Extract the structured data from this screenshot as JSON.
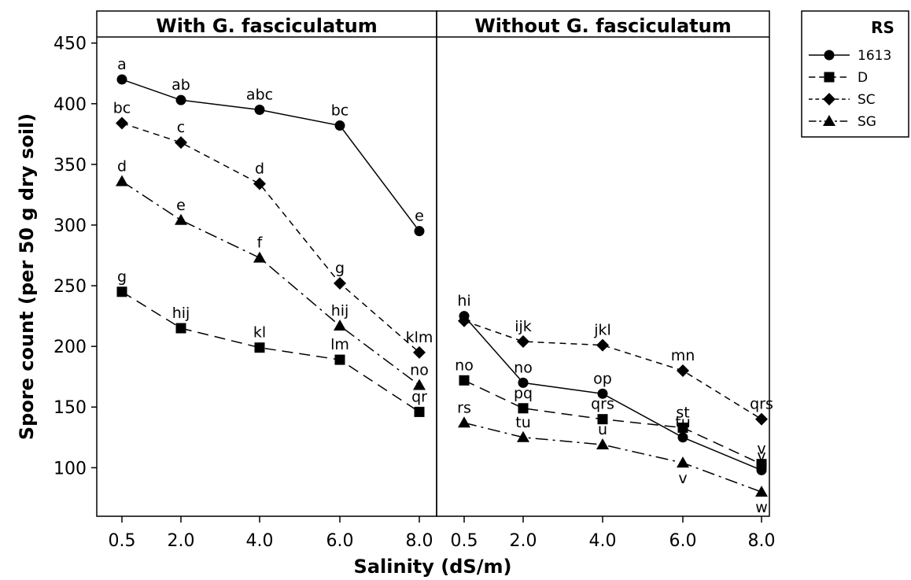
{
  "chart_data": {
    "type": "line",
    "ylabel": "Spore count (per 50 g dry soil)",
    "xlabel": "Salinity (dS/m)",
    "ylim": [
      60,
      455
    ],
    "yticks": [
      100,
      150,
      200,
      250,
      300,
      350,
      400,
      450
    ],
    "categories": [
      "0.5",
      "2.0",
      "4.0",
      "6.0",
      "8.0"
    ],
    "legend": {
      "title": "RS",
      "position": "top-right"
    },
    "series_styles": [
      {
        "name": "1613",
        "marker": "circle",
        "dash": "solid"
      },
      {
        "name": "D",
        "marker": "square",
        "dash": "long-dash"
      },
      {
        "name": "SC",
        "marker": "diamond",
        "dash": "dash"
      },
      {
        "name": "SG",
        "marker": "triangle",
        "dash": "dash-dot"
      }
    ],
    "panels": [
      {
        "title": "With G. fasciculatum",
        "series": [
          {
            "name": "1613",
            "values": [
              420,
              403,
              395,
              382,
              295
            ],
            "labels": [
              "a",
              "ab",
              "abc",
              "bc",
              "e"
            ]
          },
          {
            "name": "D",
            "values": [
              245,
              215,
              199,
              189,
              146
            ],
            "labels": [
              "g",
              "hij",
              "kl",
              "lm",
              "qr"
            ]
          },
          {
            "name": "SC",
            "values": [
              384,
              368,
              334,
              252,
              195
            ],
            "labels": [
              "bc",
              "c",
              "d",
              "g",
              "klm"
            ]
          },
          {
            "name": "SG",
            "values": [
              336,
              304,
              273,
              217,
              168
            ],
            "labels": [
              "d",
              "e",
              "f",
              "hij",
              "no"
            ]
          }
        ]
      },
      {
        "title": "Without G. fasciculatum",
        "series": [
          {
            "name": "1613",
            "values": [
              225,
              170,
              161,
              125,
              98
            ],
            "labels": [
              "hi",
              "no",
              "op",
              "tu",
              "v"
            ]
          },
          {
            "name": "D",
            "values": [
              172,
              149,
              140,
              133,
              103
            ],
            "labels": [
              "no",
              "pq",
              "qrs",
              "st",
              "v"
            ]
          },
          {
            "name": "SC",
            "values": [
              221,
              204,
              201,
              180,
              140
            ],
            "labels": [
              "",
              "ijk",
              "jkl",
              "mn",
              "qrs"
            ]
          },
          {
            "name": "SG",
            "values": [
              137,
              125,
              119,
              104,
              80
            ],
            "labels": [
              "rs",
              "tu",
              "u",
              "v",
              "w"
            ]
          }
        ]
      }
    ]
  }
}
